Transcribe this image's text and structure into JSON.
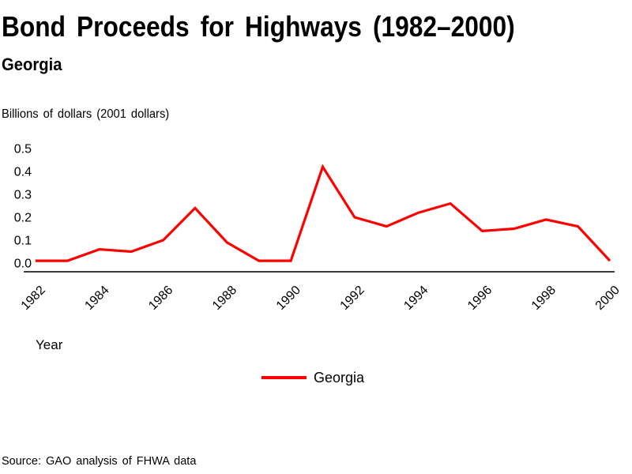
{
  "chart_data": {
    "type": "line",
    "title": "Bond Proceeds for Highways (1982–2000)",
    "subtitle": "Georgia",
    "ylabel": "Billions of dollars (2001 dollars)",
    "xlabel": "Year",
    "x": [
      1982,
      1983,
      1984,
      1985,
      1986,
      1987,
      1988,
      1989,
      1990,
      1991,
      1992,
      1993,
      1994,
      1995,
      1996,
      1997,
      1998,
      1999,
      2000
    ],
    "series": [
      {
        "name": "Georgia",
        "color": "#ff0000",
        "values": [
          0.01,
          0.01,
          0.06,
          0.05,
          0.1,
          0.24,
          0.09,
          0.01,
          0.01,
          0.42,
          0.2,
          0.16,
          0.22,
          0.26,
          0.14,
          0.15,
          0.19,
          0.16,
          0.01
        ]
      }
    ],
    "ylim": [
      0,
      0.5
    ],
    "ytick_labels": [
      "0.0",
      "0.1",
      "0.2",
      "0.3",
      "0.4",
      "0.5"
    ],
    "xtick_labels": [
      "1982",
      "1984",
      "1986",
      "1988",
      "1990",
      "1992",
      "1994",
      "1996",
      "1998",
      "2000"
    ],
    "grid": false,
    "legend_position": "bottom-center",
    "axis_color": "#000000"
  },
  "footer": {
    "source": "Source: GAO analysis of FHWA data"
  }
}
